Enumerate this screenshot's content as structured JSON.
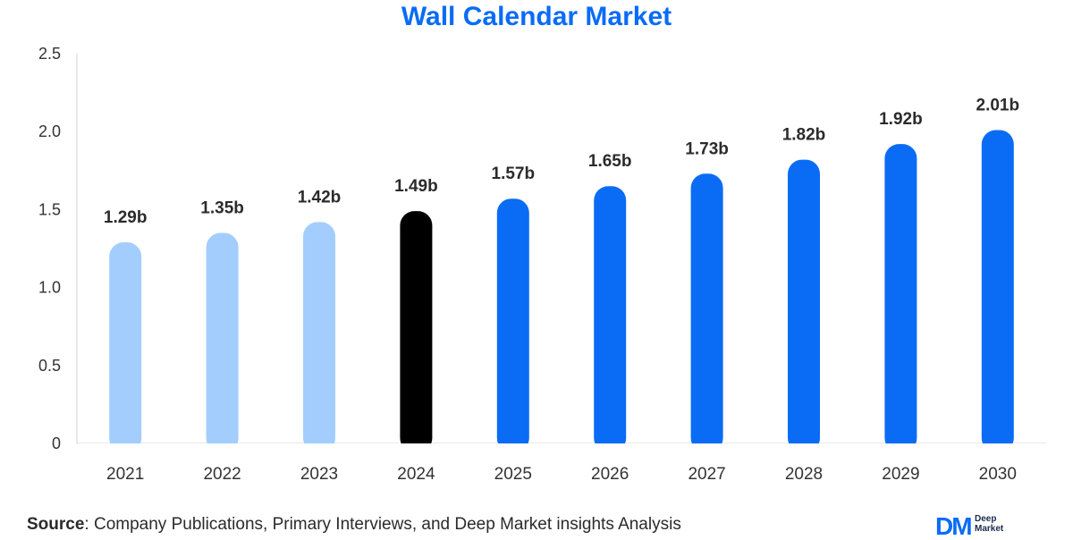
{
  "chart_data": {
    "type": "bar",
    "title": "Wall Calendar Market",
    "categories": [
      "2021",
      "2022",
      "2023",
      "2024",
      "2025",
      "2026",
      "2027",
      "2028",
      "2029",
      "2030"
    ],
    "values": [
      1.29,
      1.35,
      1.42,
      1.49,
      1.57,
      1.65,
      1.73,
      1.82,
      1.92,
      2.01
    ],
    "data_labels": [
      "1.29b",
      "1.35b",
      "1.42b",
      "1.49b",
      "1.57b",
      "1.65b",
      "1.73b",
      "1.82b",
      "1.92b",
      "2.01b"
    ],
    "bar_colors": [
      "#a3cdfd",
      "#a3cdfd",
      "#a3cdfd",
      "#000000",
      "#0a6cf5",
      "#0a6cf5",
      "#0a6cf5",
      "#0a6cf5",
      "#0a6cf5",
      "#0a6cf5"
    ],
    "yticks": [
      "0",
      "0.5",
      "1.0",
      "1.5",
      "2.0",
      "2.5"
    ],
    "ylim": [
      0,
      2.5
    ],
    "xlabel": "",
    "ylabel": "",
    "grid": false
  },
  "footer": {
    "source_label": "Source",
    "source_text": ": Company Publications, Primary Interviews, and Deep Market insights Analysis"
  },
  "logo": {
    "mark": "DM",
    "line1": "Deep",
    "line2": "Market"
  },
  "colors": {
    "accent": "#0a6cf5",
    "historical": "#a3cdfd",
    "base_year": "#000000"
  }
}
